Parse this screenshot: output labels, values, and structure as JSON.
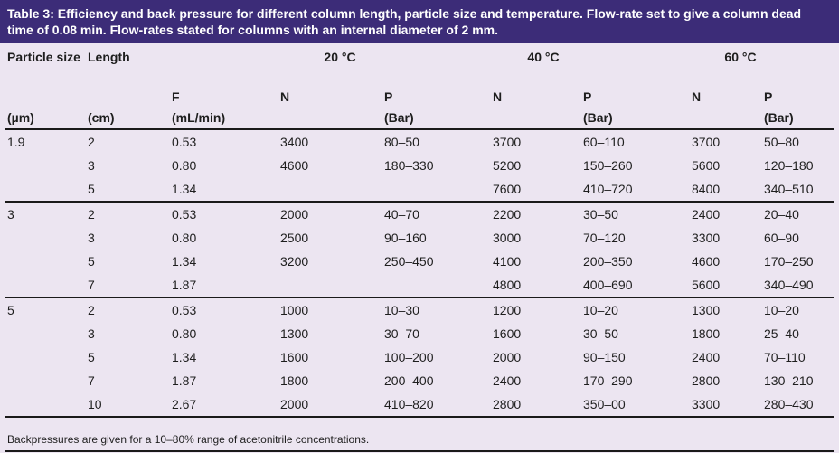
{
  "colors": {
    "banner_bg": "#3c2c78",
    "banner_text": "#ffffff",
    "body_bg": "#ece5f1",
    "text": "#1e1e1e",
    "rule": "#1a1a1a"
  },
  "title": {
    "label": "Table 3:",
    "text": " Efficiency and back pressure for different column length, particle size and temperature. Flow-rate set to give a column dead time of 0.08 min. Flow-rates stated for columns with an internal diameter of 2 mm."
  },
  "table": {
    "temp_headers": [
      "20 °C",
      "40 °C",
      "60 °C"
    ],
    "col_headers": {
      "particle_size": "Particle size",
      "length": "Length",
      "f": "F",
      "n": "N",
      "p": "P"
    },
    "units": {
      "particle_size": "(µm)",
      "length": "(cm)",
      "f": "(mL/min)",
      "p": "(Bar)"
    },
    "groups": [
      {
        "particle_size": "1.9",
        "rows": [
          [
            "2",
            "0.53",
            "3400",
            "80–50",
            "3700",
            "60–110",
            "3700",
            "50–80"
          ],
          [
            "3",
            "0.80",
            "4600",
            "180–330",
            "5200",
            "150–260",
            "5600",
            "120–180"
          ],
          [
            "5",
            "1.34",
            "",
            "",
            "7600",
            "410–720",
            "8400",
            "340–510"
          ]
        ]
      },
      {
        "particle_size": "3",
        "rows": [
          [
            "2",
            "0.53",
            "2000",
            "40–70",
            "2200",
            "30–50",
            "2400",
            "20–40"
          ],
          [
            "3",
            "0.80",
            "2500",
            "90–160",
            "3000",
            "70–120",
            "3300",
            "60–90"
          ],
          [
            "5",
            "1.34",
            "3200",
            "250–450",
            "4100",
            "200–350",
            "4600",
            "170–250"
          ],
          [
            "7",
            "1.87",
            "",
            "",
            "4800",
            "400–690",
            "5600",
            "340–490"
          ]
        ]
      },
      {
        "particle_size": "5",
        "rows": [
          [
            "2",
            "0.53",
            "1000",
            "10–30",
            "1200",
            "10–20",
            "1300",
            "10–20"
          ],
          [
            "3",
            "0.80",
            "1300",
            "30–70",
            "1600",
            "30–50",
            "1800",
            "25–40"
          ],
          [
            "5",
            "1.34",
            "1600",
            "100–200",
            "2000",
            "90–150",
            "2400",
            "70–110"
          ],
          [
            "7",
            "1.87",
            "1800",
            "200–400",
            "2400",
            "170–290",
            "2800",
            "130–210"
          ],
          [
            "10",
            "2.67",
            "2000",
            "410–820",
            "2800",
            "350–00",
            "3300",
            "280–430"
          ]
        ]
      }
    ]
  },
  "footnote": "Backpressures are given for a 10–80% range of acetonitrile concentrations."
}
